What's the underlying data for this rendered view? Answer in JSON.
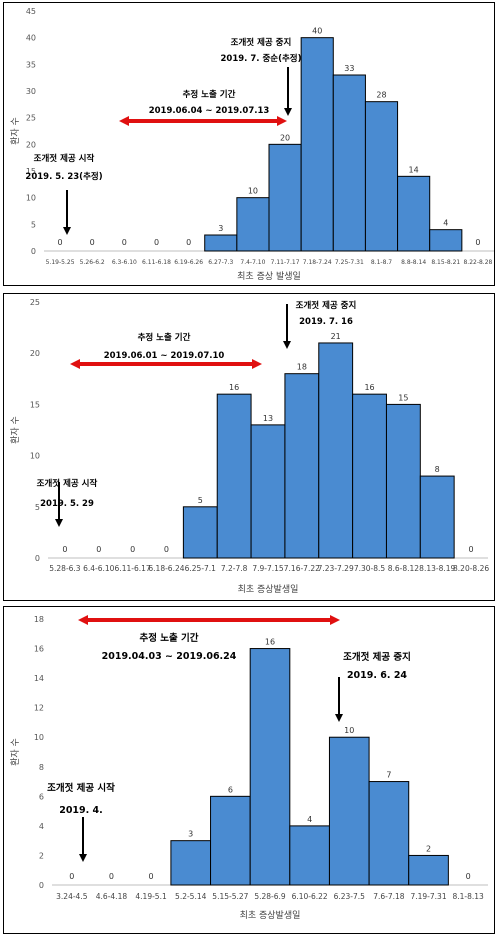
{
  "chart_data": [
    {
      "type": "bar",
      "xlabel": "최초 증상 발생일",
      "ylabel": "환자 수",
      "ylim": [
        0,
        45
      ],
      "ytick_step": 5,
      "categories": [
        "5.19-5.25",
        "5.26-6.2",
        "6.3-6.10",
        "6.11-6.18",
        "6.19-6.26",
        "6.27-7.3",
        "7.4-7.10",
        "7.11-7.17",
        "7.18-7.24",
        "7.25-7.31",
        "8.1-8.7",
        "8.8-8.14",
        "8.15-8.21",
        "8.22-8.28"
      ],
      "values": [
        0,
        0,
        0,
        0,
        0,
        3,
        10,
        20,
        40,
        33,
        28,
        14,
        4,
        0
      ],
      "bar_color": "#4a8bd1",
      "arrow_color": "#e01010",
      "annotations": [
        {
          "id": "start",
          "lines": [
            "조개젓 제공 시작",
            "2019. 5. 23(추정)"
          ]
        },
        {
          "id": "exposure",
          "lines": [
            "추정 노출 기간",
            "2019.06.04 ~ 2019.07.13"
          ]
        },
        {
          "id": "stop",
          "lines": [
            "조개젓 제공 중지",
            "2019. 7. 중순(추정)"
          ]
        }
      ]
    },
    {
      "type": "bar",
      "xlabel": "최초 증상발생일",
      "ylabel": "환자 수",
      "ylim": [
        0,
        25
      ],
      "ytick_step": 5,
      "categories": [
        "5.28-6.3",
        "6.4-6.10",
        "6.11-6.17",
        "6.18-6.24",
        "6.25-7.1",
        "7.2-7.8",
        "7.9-7.15",
        "7.16-7.22",
        "7.23-7.29",
        "7.30-8.5",
        "8.6-8.12",
        "8.13-8.19",
        "8.20-8.26"
      ],
      "values": [
        0,
        0,
        0,
        0,
        5,
        16,
        13,
        18,
        21,
        16,
        15,
        8,
        0
      ],
      "bar_color": "#4a8bd1",
      "arrow_color": "#e01010",
      "annotations": [
        {
          "id": "start",
          "lines": [
            "조개젓 제공 시작",
            "2019. 5. 29"
          ]
        },
        {
          "id": "exposure",
          "lines": [
            "추정 노출 기간",
            "2019.06.01 ~ 2019.07.10"
          ]
        },
        {
          "id": "stop",
          "lines": [
            "조개젓 제공 중지",
            "2019. 7. 16"
          ]
        }
      ]
    },
    {
      "type": "bar",
      "xlabel": "최초 증상발생일",
      "ylabel": "환자 수",
      "ylim": [
        0,
        18
      ],
      "ytick_step": 2,
      "categories": [
        "3.24-4.5",
        "4.6-4.18",
        "4.19-5.1",
        "5.2-5.14",
        "5.15-5.27",
        "5.28-6.9",
        "6.10-6.22",
        "6.23-7.5",
        "7.6-7.18",
        "7.19-7.31",
        "8.1-8.13"
      ],
      "values": [
        0,
        0,
        0,
        3,
        6,
        16,
        4,
        10,
        7,
        2,
        0
      ],
      "bar_color": "#4a8bd1",
      "arrow_color": "#e01010",
      "annotations": [
        {
          "id": "start",
          "lines": [
            "조개젓 제공 시작",
            "2019. 4."
          ]
        },
        {
          "id": "exposure",
          "lines": [
            "추정 노출 기간",
            "2019.04.03 ~ 2019.06.24"
          ]
        },
        {
          "id": "stop",
          "lines": [
            "조개젓 제공 중지",
            "2019. 6. 24"
          ]
        }
      ]
    }
  ]
}
